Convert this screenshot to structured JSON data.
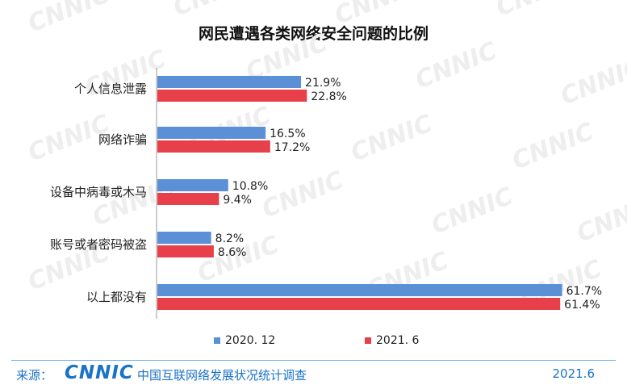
{
  "chart_data": {
    "type": "bar",
    "orientation": "horizontal",
    "title": "网民遭遇各类网络安全问题的比例",
    "categories": [
      "个人信息泄露",
      "网络诈骗",
      "设备中病毒或木马",
      "账号或者密码被盗",
      "以上都没有"
    ],
    "series": [
      {
        "name": "2020. 12",
        "values": [
          21.9,
          16.5,
          10.8,
          8.2,
          61.7
        ],
        "labels": [
          "21.9%",
          "16.5%",
          "10.8%",
          "8.2%",
          "61.7%"
        ],
        "color": "#5b8fd6"
      },
      {
        "name": "2021. 6",
        "values": [
          22.8,
          17.2,
          9.4,
          8.6,
          61.4
        ],
        "labels": [
          "22.8%",
          "17.2%",
          "9.4%",
          "8.6%",
          "61.4%"
        ],
        "color": "#e8404a"
      }
    ],
    "xlim": [
      0,
      70
    ],
    "grid": false,
    "legend_position": "bottom"
  },
  "watermark": {
    "text": "CNNIC"
  },
  "footer": {
    "source_label": "来源：",
    "logo_text": "CNNIC",
    "org_name": "中国互联网络发展状况统计调查",
    "date": "2021.6"
  }
}
